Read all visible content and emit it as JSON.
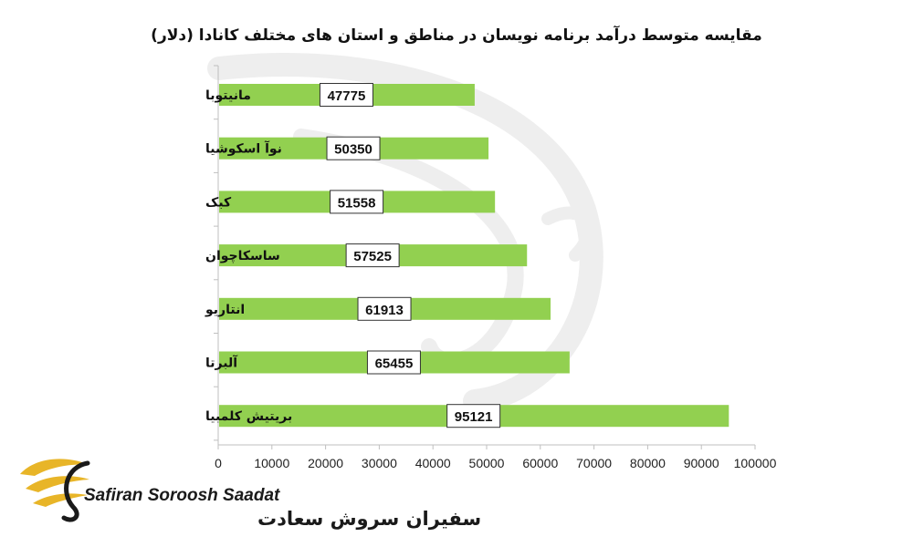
{
  "colors": {
    "bar": "#92d050",
    "axis": "#bfbfbf",
    "label_box_border": "#333333",
    "logo_gold": "#e8b528",
    "logo_dark": "#1a1a1a",
    "watermark": "#eeeeee"
  },
  "logo": {
    "latin_name": "Safiran Soroosh Saadat",
    "persian_name": "سفیران سروش سعادت",
    "icon": "golden-wing-swan-icon"
  },
  "chart_data": {
    "type": "bar",
    "orientation": "horizontal",
    "title": "مقایسه متوسط درآمد برنامه نویسان در مناطق و استان های مختلف کانادا (دلار)",
    "categories": [
      "مانیتوبا",
      "نوآ اسکوشیا",
      "کبک",
      "ساسکاچوان",
      "انتاریو",
      "آلبرتا",
      "بریتیش کلمبیا"
    ],
    "values": [
      47775,
      50350,
      51558,
      57525,
      61913,
      65455,
      95121
    ],
    "value_labels": [
      "47775",
      "50350",
      "51558",
      "57525",
      "61913",
      "65455",
      "95121"
    ],
    "xlim": [
      0,
      100000
    ],
    "x_ticks": [
      0,
      10000,
      20000,
      30000,
      40000,
      50000,
      60000,
      70000,
      80000,
      90000,
      100000
    ],
    "x_tick_labels": [
      "0",
      "10000",
      "20000",
      "30000",
      "40000",
      "50000",
      "60000",
      "70000",
      "80000",
      "90000",
      "100000"
    ],
    "grid": false,
    "legend": "none"
  }
}
